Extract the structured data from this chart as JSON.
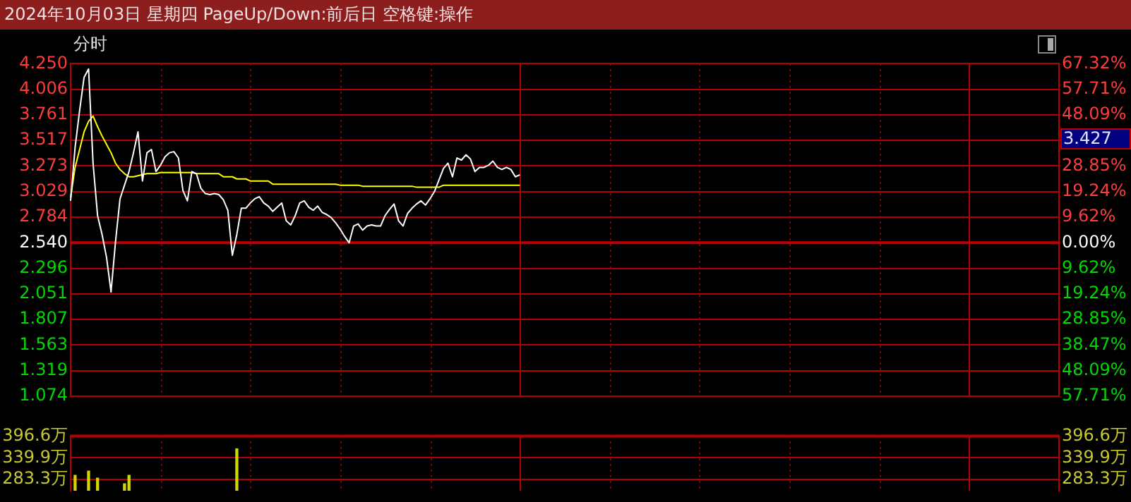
{
  "chart_data": [
    {
      "type": "line",
      "title": "2024年10月03日 星期四 PageUp/Down:前后日 空格键:操作",
      "subtitle": "分时",
      "categories": [
        null,
        null,
        null,
        null,
        null,
        null,
        null,
        null,
        null,
        null,
        null,
        null,
        null,
        null,
        null,
        null,
        null,
        null,
        null,
        null,
        null,
        null,
        null,
        null,
        null,
        null,
        null,
        null,
        null,
        null,
        null,
        null,
        null,
        null,
        null,
        null,
        null,
        null,
        null,
        null,
        null,
        null,
        null,
        null,
        null,
        null,
        null,
        null,
        null,
        null,
        null,
        null,
        null,
        null,
        null,
        null,
        null,
        null,
        null,
        null,
        null,
        null,
        null,
        null,
        null,
        null,
        null,
        null,
        null,
        null,
        null,
        null,
        null,
        null,
        null,
        null,
        null,
        null,
        null,
        null,
        null,
        null,
        null,
        null,
        null,
        null,
        null,
        null,
        null,
        null,
        null,
        null,
        null,
        null,
        null,
        null,
        null,
        null,
        null,
        null,
        null,
        null,
        null,
        null,
        null,
        null,
        null,
        null,
        null,
        null,
        null,
        null,
        null,
        null,
        null,
        null,
        null,
        null,
        null,
        null,
        null,
        null,
        null,
        null,
        null,
        null,
        null,
        null,
        null,
        null,
        null,
        null,
        null,
        null,
        null,
        null,
        null,
        null,
        null,
        null,
        null,
        null,
        null,
        null,
        null,
        null,
        null,
        null,
        null,
        null,
        null,
        null,
        null,
        null,
        null,
        null,
        null,
        null,
        null,
        null,
        null,
        null,
        null,
        null,
        null,
        null,
        null,
        null,
        null,
        null,
        null,
        null,
        null,
        null,
        null,
        null,
        null,
        null,
        null,
        null,
        null,
        null,
        null,
        null,
        null,
        null,
        null,
        null,
        null,
        null,
        null,
        null,
        null,
        null,
        null,
        null,
        null,
        null,
        null,
        null,
        null,
        null,
        null,
        null,
        null,
        null,
        null,
        null,
        null,
        null,
        null,
        null,
        null,
        null,
        null,
        null,
        null,
        null,
        null,
        null,
        null
      ],
      "series": [
        {
          "color": "#ffffff",
          "values": [
            2.94,
            3.45,
            3.8,
            4.12,
            4.2,
            3.3,
            2.8,
            2.62,
            2.4,
            2.07,
            2.55,
            2.96,
            3.09,
            3.22,
            3.4,
            3.6,
            3.13,
            3.4,
            3.43,
            3.22,
            3.28,
            3.36,
            3.4,
            3.41,
            3.35,
            3.04,
            2.94,
            3.22,
            3.2,
            3.06,
            3.01,
            3.0,
            3.01,
            3.0,
            2.95,
            2.85,
            2.42,
            2.62,
            2.87,
            2.87,
            2.92,
            2.96,
            2.98,
            2.92,
            2.89,
            2.84,
            2.88,
            2.92,
            2.75,
            2.71,
            2.8,
            2.92,
            2.94,
            2.88,
            2.85,
            2.89,
            2.83,
            2.81,
            2.78,
            2.73,
            2.67,
            2.6,
            2.54,
            2.7,
            2.72,
            2.66,
            2.7,
            2.71,
            2.7,
            2.7,
            2.8,
            2.86,
            2.91,
            2.75,
            2.7,
            2.82,
            2.87,
            2.91,
            2.94,
            2.9,
            2.96,
            3.03,
            3.14,
            3.25,
            3.3,
            3.17,
            3.35,
            3.33,
            3.38,
            3.34,
            3.22,
            3.26,
            3.26,
            3.28,
            3.32,
            3.26,
            3.24,
            3.26,
            3.24,
            3.17,
            3.19,
            null,
            null,
            null,
            null,
            null,
            null,
            null,
            null,
            null,
            null,
            null,
            null,
            null,
            null,
            null,
            null,
            null,
            null,
            null,
            null,
            null,
            null,
            null,
            null,
            null,
            null,
            null,
            null,
            null,
            null,
            null,
            null,
            null,
            null,
            null,
            null,
            null,
            null,
            null,
            null,
            null,
            null,
            null,
            null,
            null,
            null,
            null,
            null,
            null,
            null,
            null,
            null,
            null,
            null,
            null,
            null,
            null,
            null,
            null,
            null,
            null,
            null,
            null,
            null,
            null,
            null,
            null,
            null,
            null,
            null,
            null,
            null,
            null,
            null,
            null,
            null,
            null,
            null,
            null,
            null,
            null,
            null,
            null,
            null,
            null,
            null,
            null,
            null,
            null,
            null,
            null,
            null,
            null,
            null,
            null,
            null,
            null,
            null,
            null,
            null,
            null,
            null,
            null,
            null,
            null,
            null,
            null,
            null,
            null,
            null,
            null,
            null,
            null,
            null,
            null,
            null,
            null,
            null,
            null,
            null
          ]
        },
        {
          "color": "#ffff00",
          "values": [
            2.97,
            3.26,
            3.43,
            3.6,
            3.7,
            3.75,
            3.65,
            3.56,
            3.48,
            3.4,
            3.3,
            3.24,
            3.2,
            3.17,
            3.17,
            3.18,
            3.19,
            3.2,
            3.2,
            3.2,
            3.21,
            3.21,
            3.21,
            3.21,
            3.21,
            3.21,
            3.21,
            3.21,
            3.2,
            3.2,
            3.2,
            3.2,
            3.2,
            3.2,
            3.17,
            3.17,
            3.17,
            3.15,
            3.15,
            3.15,
            3.13,
            3.13,
            3.13,
            3.13,
            3.13,
            3.1,
            3.1,
            3.1,
            3.1,
            3.1,
            3.1,
            3.1,
            3.1,
            3.1,
            3.1,
            3.1,
            3.1,
            3.1,
            3.1,
            3.1,
            3.09,
            3.09,
            3.09,
            3.09,
            3.09,
            3.08,
            3.08,
            3.08,
            3.08,
            3.08,
            3.08,
            3.08,
            3.08,
            3.08,
            3.08,
            3.08,
            3.08,
            3.07,
            3.07,
            3.07,
            3.07,
            3.07,
            3.07,
            3.09,
            3.09,
            3.09,
            3.09,
            3.09,
            3.09,
            3.09,
            3.09,
            3.09,
            3.09,
            3.09,
            3.09,
            3.09,
            3.09,
            3.09,
            3.09,
            3.09,
            3.09,
            null,
            null,
            null,
            null,
            null,
            null,
            null,
            null,
            null,
            null,
            null,
            null,
            null,
            null,
            null,
            null,
            null,
            null,
            null,
            null,
            null,
            null,
            null,
            null,
            null,
            null,
            null,
            null,
            null,
            null,
            null,
            null,
            null,
            null,
            null,
            null,
            null,
            null,
            null,
            null,
            null,
            null,
            null,
            null,
            null,
            null,
            null,
            null,
            null,
            null,
            null,
            null,
            null,
            null,
            null,
            null,
            null,
            null,
            null,
            null,
            null,
            null,
            null,
            null,
            null,
            null,
            null,
            null,
            null,
            null,
            null,
            null,
            null,
            null,
            null,
            null,
            null,
            null,
            null,
            null,
            null,
            null,
            null,
            null,
            null,
            null,
            null,
            null,
            null,
            null,
            null,
            null,
            null,
            null,
            null,
            null,
            null,
            null,
            null,
            null,
            null,
            null,
            null,
            null,
            null,
            null,
            null,
            null,
            null,
            null,
            null,
            null,
            null,
            null,
            null,
            null,
            null,
            null,
            null,
            null
          ]
        }
      ],
      "ylim": [
        1.074,
        4.25
      ],
      "yticks": [
        {
          "value": 4.25,
          "label": "4.250"
        },
        {
          "value": 4.006,
          "label": "4.006"
        },
        {
          "value": 3.761,
          "label": "3.761"
        },
        {
          "value": 3.517,
          "label": "3.517"
        },
        {
          "value": 3.273,
          "label": "3.273"
        },
        {
          "value": 3.029,
          "label": "3.029"
        },
        {
          "value": 2.784,
          "label": "2.784"
        },
        {
          "value": 2.54,
          "label": "2.540"
        },
        {
          "value": 2.296,
          "label": "2.296"
        },
        {
          "value": 2.051,
          "label": "2.051"
        },
        {
          "value": 1.807,
          "label": "1.807"
        },
        {
          "value": 1.563,
          "label": "1.563"
        },
        {
          "value": 1.319,
          "label": "1.319"
        },
        {
          "value": 1.074,
          "label": "1.074"
        }
      ],
      "y2lim": [
        -57.72,
        67.32
      ],
      "y2ticks": [
        {
          "value": 67.32,
          "label": "67.32%"
        },
        {
          "value": 57.71,
          "label": "57.71%"
        },
        {
          "value": 48.09,
          "label": "48.09%"
        },
        {
          "value": 38.47,
          "label": null
        },
        {
          "value": 28.85,
          "label": "28.85%"
        },
        {
          "value": 19.24,
          "label": "19.24%"
        },
        {
          "value": 9.62,
          "label": "9.62%"
        },
        {
          "value": 0,
          "label": "0.00%"
        },
        {
          "value": -9.62,
          "label": "9.62%"
        },
        {
          "value": -19.24,
          "label": "19.24%"
        },
        {
          "value": -28.85,
          "label": "28.85%"
        },
        {
          "value": -38.47,
          "label": "38.47%"
        },
        {
          "value": -48.09,
          "label": "48.09%"
        },
        {
          "value": -57.71,
          "label": "57.71%"
        }
      ],
      "ref_lines": [
        {
          "axis": "y",
          "value": 2.54,
          "color": "#c00000"
        }
      ],
      "annotations": [
        "3.427"
      ],
      "grid": true,
      "legend": false,
      "tick_labels": "y"
    },
    {
      "type": "bar",
      "color": "#d4d400",
      "categories": [
        null,
        null,
        null,
        null,
        null,
        null,
        null,
        null,
        null,
        null,
        null,
        null,
        null,
        null,
        null,
        null,
        null,
        null,
        null,
        null,
        null,
        null,
        null,
        null,
        null,
        null,
        null,
        null,
        null,
        null,
        null,
        null,
        null,
        null,
        null,
        null,
        null,
        null,
        null,
        null,
        null,
        null,
        null,
        null,
        null,
        null,
        null,
        null,
        null,
        null,
        null,
        null,
        null,
        null,
        null,
        null,
        null,
        null,
        null,
        null,
        null,
        null,
        null,
        null,
        null,
        null,
        null,
        null,
        null,
        null,
        null,
        null,
        null,
        null,
        null,
        null,
        null,
        null,
        null,
        null,
        null,
        null,
        null,
        null,
        null,
        null,
        null,
        null,
        null,
        null,
        null,
        null,
        null,
        null,
        null,
        null,
        null,
        null,
        null,
        null,
        null,
        null,
        null,
        null,
        null,
        null,
        null,
        null,
        null,
        null,
        null,
        null,
        null,
        null,
        null,
        null,
        null,
        null,
        null,
        null,
        null,
        null,
        null,
        null,
        null,
        null,
        null,
        null,
        null,
        null,
        null,
        null,
        null,
        null,
        null,
        null,
        null,
        null,
        null,
        null,
        null,
        null,
        null,
        null,
        null,
        null,
        null,
        null,
        null,
        null,
        null,
        null,
        null,
        null,
        null,
        null,
        null,
        null,
        null,
        null,
        null,
        null,
        null,
        null,
        null,
        null,
        null,
        null,
        null,
        null,
        null,
        null,
        null,
        null,
        null,
        null,
        null,
        null,
        null,
        null,
        null,
        null,
        null,
        null,
        null,
        null,
        null,
        null,
        null,
        null,
        null,
        null,
        null,
        null,
        null,
        null,
        null,
        null,
        null,
        null,
        null,
        null,
        null,
        null,
        null,
        null,
        null,
        null,
        null,
        null,
        null,
        null,
        null,
        null,
        null,
        null,
        null,
        null,
        null,
        null,
        null
      ],
      "values": [
        null,
        294,
        null,
        null,
        305,
        null,
        287,
        null,
        null,
        null,
        null,
        null,
        272,
        294,
        null,
        null,
        null,
        null,
        null,
        null,
        null,
        null,
        null,
        null,
        null,
        null,
        null,
        null,
        null,
        null,
        null,
        null,
        null,
        null,
        null,
        null,
        null,
        363,
        null,
        null,
        null,
        null,
        null,
        null,
        null,
        null,
        null,
        null,
        null,
        null,
        null,
        null,
        null,
        null,
        null,
        null,
        null,
        null,
        null,
        null,
        null,
        null,
        null,
        null,
        null,
        null,
        null,
        null,
        null,
        null,
        null,
        null,
        null,
        null,
        null,
        null,
        null,
        null,
        null,
        null,
        null,
        null,
        null,
        null,
        null,
        null,
        null,
        null,
        null,
        null,
        null,
        null,
        null,
        null,
        null,
        null,
        null,
        null,
        null,
        null,
        null,
        null,
        null,
        null,
        null,
        null,
        null,
        null,
        null,
        null,
        null,
        null,
        null,
        null,
        null,
        null,
        null,
        null,
        null,
        null,
        null,
        null,
        null,
        null,
        null,
        null,
        null,
        null,
        null,
        null,
        null,
        null,
        null,
        null,
        null,
        null,
        null,
        null,
        null,
        null,
        null,
        null,
        null,
        null,
        null,
        null,
        null,
        null,
        null,
        null,
        null,
        null,
        null,
        null,
        null,
        null,
        null,
        null,
        null,
        null,
        null,
        null,
        null,
        null,
        null,
        null,
        null,
        null,
        null,
        null,
        null,
        null,
        null,
        null,
        null,
        null,
        null,
        null,
        null,
        null,
        null,
        null,
        null,
        null,
        null,
        null,
        null,
        null,
        null,
        null,
        null,
        null,
        null,
        null,
        null,
        null,
        null,
        null,
        null,
        null,
        null,
        null,
        null,
        null,
        null,
        null,
        null,
        null,
        null,
        null,
        null,
        null,
        null,
        null,
        null,
        null,
        null,
        null,
        null,
        null,
        null
      ],
      "ylim": [
        254,
        396.6
      ],
      "yticks": [
        {
          "value": 396.6,
          "label": "396.6万"
        },
        {
          "value": 339.9,
          "label": "339.9万"
        },
        {
          "value": 283.3,
          "label": "283.3万"
        }
      ],
      "y2lim": [
        254,
        396.6
      ],
      "y2ticks": [
        {
          "value": 396.6,
          "label": "396.6万"
        },
        {
          "value": 339.9,
          "label": "339.9万"
        },
        {
          "value": 283.3,
          "label": "283.3万"
        }
      ],
      "grid": true,
      "legend": false,
      "tick_labels": "y"
    }
  ]
}
